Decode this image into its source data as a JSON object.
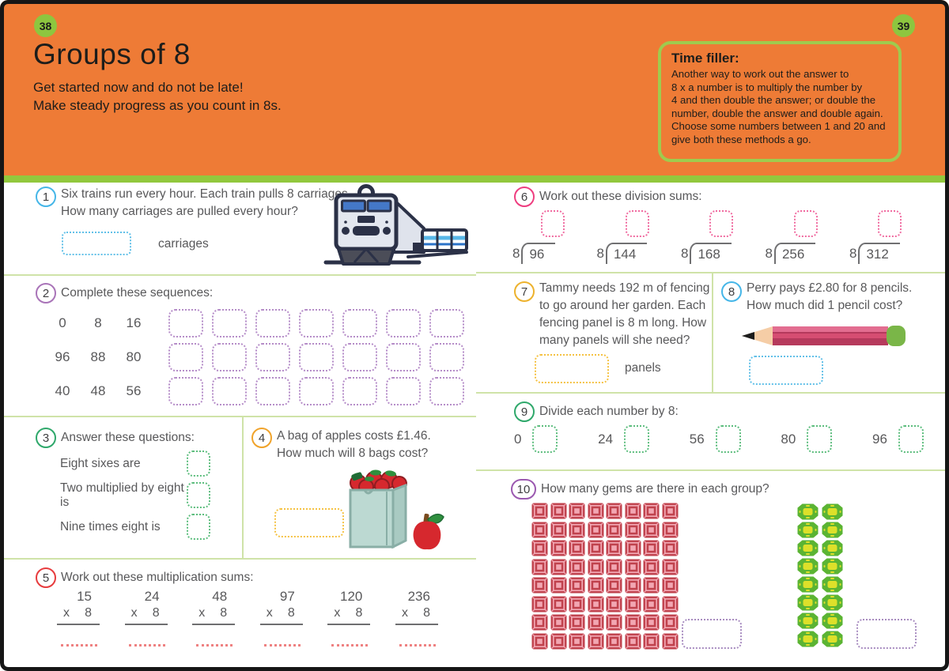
{
  "page": {
    "left_page_number": "38",
    "right_page_number": "39",
    "title": "Groups of 8",
    "subtitle": "Get started now and do not be late!\nMake steady progress as you count in 8s.",
    "colors": {
      "header_orange": "#ee7b36",
      "badge_green": "#8dc63f",
      "strip_green": "#92c83d",
      "divider_green": "#cfe3a8",
      "frame_black": "#161616",
      "text_dark": "#1d1d1b",
      "text_body": "#58585a"
    }
  },
  "time_filler": {
    "title": "Time filler:",
    "body": "Another way to work out the answer to\n8 x a number is to multiply the number by\n4 and then double the answer; or double the\nnumber, double the answer and double again.\nChoose some numbers between 1 and 20 and\ngive both these methods a go."
  },
  "questions": {
    "q1": {
      "number": "1",
      "accent": "#45b6e8",
      "box_accent": "#62c0e8",
      "text": "Six trains run every hour. Each train pulls 8 carriages.\nHow many carriages are pulled every hour?",
      "answer_label": "carriages"
    },
    "q2": {
      "number": "2",
      "accent": "#a974b8",
      "box_accent": "#b58cc8",
      "text": "Complete these sequences:",
      "rows": [
        [
          "0",
          "8",
          "16"
        ],
        [
          "96",
          "88",
          "80"
        ],
        [
          "40",
          "48",
          "56"
        ]
      ],
      "boxes_per_row": 7
    },
    "q3": {
      "number": "3",
      "accent": "#2fa86b",
      "box_accent": "#5cbd7d",
      "text": "Answer these questions:",
      "items": [
        "Eight sixes are",
        "Two multiplied by eight is",
        "Nine times eight is"
      ]
    },
    "q4": {
      "number": "4",
      "accent": "#f0a32a",
      "box_accent": "#f5c243",
      "text": "A bag of apples costs £1.46.\nHow much will 8 bags cost?"
    },
    "q5": {
      "number": "5",
      "accent": "#e73c3e",
      "line_accent": "#ee8181",
      "text": "Work out these multiplication sums:",
      "multiplicands": [
        "15",
        "24",
        "48",
        "97",
        "120",
        "236"
      ],
      "multiplier_symbol": "x",
      "multiplier_value": "8"
    },
    "q6": {
      "number": "6",
      "accent": "#ee3d7f",
      "box_accent": "#f06ba0",
      "text": "Work out these division sums:",
      "divisor": "8",
      "dividends": [
        "96",
        "144",
        "168",
        "256",
        "312"
      ]
    },
    "q7": {
      "number": "7",
      "accent": "#edb22d",
      "box_accent": "#f5c243",
      "text": "Tammy needs 192 m of fencing\nto go around her garden. Each\nfencing panel is 8 m long. How\nmany panels will she need?",
      "answer_label": "panels"
    },
    "q8": {
      "number": "8",
      "accent": "#45b6e8",
      "box_accent": "#62c0e8",
      "text": "Perry pays £2.80 for 8 pencils.\nHow much did 1 pencil cost?"
    },
    "q9": {
      "number": "9",
      "accent": "#2fa86b",
      "box_accent": "#5cbd7d",
      "text": "Divide each number by 8:",
      "numbers": [
        "0",
        "24",
        "56",
        "80",
        "96"
      ]
    },
    "q10": {
      "number": "10",
      "accent": "#9b59b0",
      "box_accent": "#a88cc0",
      "text": "How many gems are there in each group?",
      "red_gems": {
        "rows": 8,
        "cols": 8,
        "body": "#c0424d",
        "facet": "#f2a7b3"
      },
      "green_gems": {
        "rows": 8,
        "cols": 2,
        "body": "#5bb433",
        "facet": "#dde02a"
      }
    }
  }
}
